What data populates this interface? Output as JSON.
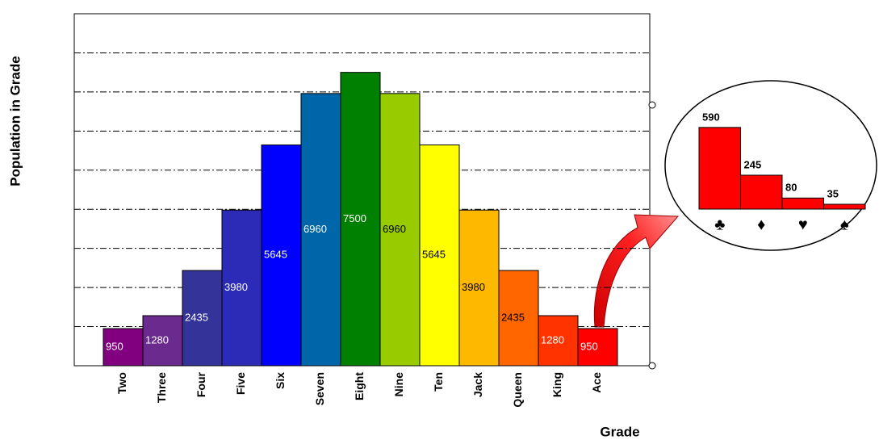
{
  "chart_data": [
    {
      "type": "bar",
      "y_label": "Population in Grade",
      "x_label": "Grade",
      "categories": [
        "Two",
        "Three",
        "Four",
        "Five",
        "Six",
        "Seven",
        "Eight",
        "Nine",
        "Ten",
        "Jack",
        "Queen",
        "King",
        "Ace"
      ],
      "values": [
        950,
        1280,
        2435,
        3980,
        5645,
        6960,
        7500,
        6960,
        5645,
        3980,
        2435,
        1280,
        950
      ],
      "colors": [
        "#800080",
        "#6a2a8e",
        "#333399",
        "#2b2bb8",
        "#0000ff",
        "#0066aa",
        "#008000",
        "#99cc00",
        "#ffff00",
        "#ffb800",
        "#ff6600",
        "#ff3300",
        "#ff0000"
      ],
      "ylim": [
        0,
        9000
      ],
      "yticks": [
        1000,
        2000,
        3000,
        4000,
        5000,
        6000,
        7000,
        8000
      ],
      "grid": true
    },
    {
      "type": "bar",
      "categories": [
        "♣",
        "♦",
        "♥",
        "♠"
      ],
      "values": [
        590,
        245,
        80,
        35
      ],
      "color": "#ff0000",
      "ylim": [
        0,
        700
      ]
    }
  ]
}
